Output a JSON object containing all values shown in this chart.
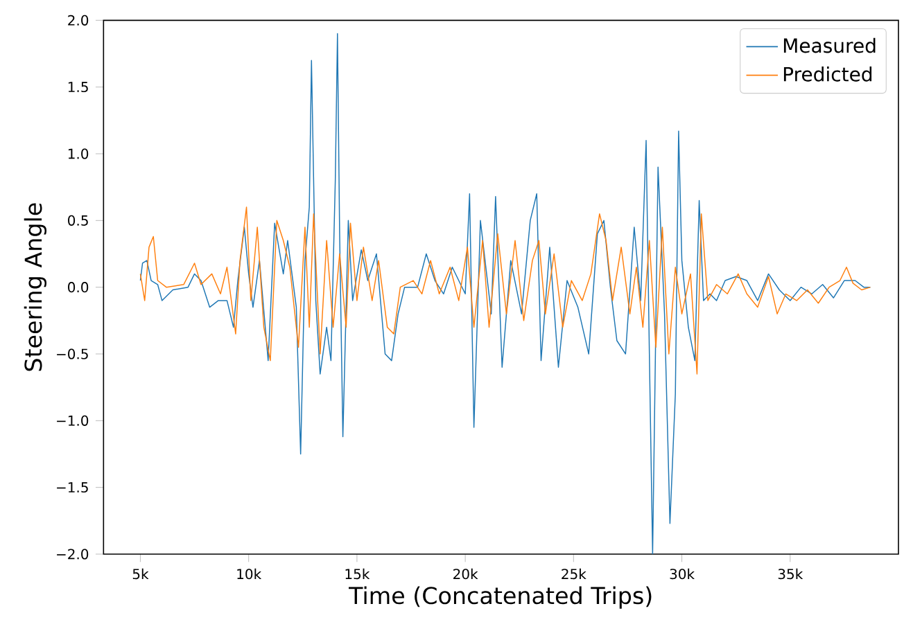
{
  "chart_data": {
    "type": "line",
    "xlabel": "Time (Concatenated Trips)",
    "ylabel": "Steering Angle",
    "xlim": [
      3300,
      40000
    ],
    "ylim": [
      -2.0,
      2.0
    ],
    "xticks": [
      {
        "value": 5000,
        "label": "5k"
      },
      {
        "value": 10000,
        "label": "10k"
      },
      {
        "value": 15000,
        "label": "15k"
      },
      {
        "value": 20000,
        "label": "20k"
      },
      {
        "value": 25000,
        "label": "25k"
      },
      {
        "value": 30000,
        "label": "30k"
      },
      {
        "value": 35000,
        "label": "35k"
      }
    ],
    "yticks": [
      {
        "value": -2.0,
        "label": "−2.0"
      },
      {
        "value": -1.5,
        "label": "−1.5"
      },
      {
        "value": -1.0,
        "label": "−1.0"
      },
      {
        "value": -0.5,
        "label": "−0.5"
      },
      {
        "value": 0,
        "label": "0.0"
      },
      {
        "value": 0.5,
        "label": "0.5"
      },
      {
        "value": 1.0,
        "label": "1.0"
      },
      {
        "value": 1.5,
        "label": "1.5"
      },
      {
        "value": 2.0,
        "label": "2.0"
      }
    ],
    "legend": "top right",
    "grid": false,
    "marker": "none",
    "line_style": "solid",
    "series": [
      {
        "name": "Measured",
        "color": "#1f77b4",
        "x": [
          5000,
          5100,
          5300,
          5500,
          5800,
          6000,
          6500,
          7200,
          7500,
          7800,
          8200,
          8600,
          9000,
          9300,
          9500,
          9800,
          10000,
          10200,
          10500,
          10900,
          11200,
          11600,
          11800,
          12200,
          12400,
          12600,
          12800,
          12900,
          13100,
          13300,
          13600,
          13800,
          14000,
          14100,
          14200,
          14350,
          14600,
          14800,
          15200,
          15500,
          15900,
          16300,
          16600,
          16900,
          17200,
          17800,
          18200,
          18600,
          19000,
          19400,
          20000,
          20200,
          20400,
          20700,
          21200,
          21400,
          21700,
          22100,
          22600,
          23000,
          23300,
          23500,
          23900,
          24300,
          24700,
          25200,
          25700,
          26100,
          26400,
          26700,
          27000,
          27400,
          27800,
          28100,
          28350,
          28500,
          28650,
          28900,
          29200,
          29450,
          29700,
          29850,
          30000,
          30300,
          30600,
          30800,
          31000,
          31300,
          31600,
          32000,
          32500,
          33000,
          33500,
          34000,
          34500,
          35000,
          35500,
          36000,
          36500,
          37000,
          37500,
          38000,
          38400,
          38700
        ],
        "values": [
          0.05,
          0.18,
          0.2,
          0.05,
          0.02,
          -0.1,
          -0.02,
          0,
          0.1,
          0.05,
          -0.15,
          -0.1,
          -0.1,
          -0.3,
          0.05,
          0.45,
          0.1,
          -0.15,
          0.2,
          -0.55,
          0.48,
          0.1,
          0.35,
          -0.15,
          -1.25,
          0.2,
          0.6,
          1.7,
          -0.1,
          -0.65,
          -0.3,
          -0.55,
          0.8,
          1.9,
          0.4,
          -1.12,
          0.5,
          -0.1,
          0.28,
          0.05,
          0.25,
          -0.5,
          -0.55,
          -0.2,
          0,
          0,
          0.25,
          0.05,
          -0.05,
          0.15,
          -0.05,
          0.7,
          -1.05,
          0.5,
          -0.2,
          0.68,
          -0.6,
          0.2,
          -0.2,
          0.5,
          0.7,
          -0.55,
          0.3,
          -0.6,
          0.05,
          -0.15,
          -0.5,
          0.4,
          0.5,
          0,
          -0.4,
          -0.5,
          0.45,
          -0.1,
          1.1,
          -0.5,
          -2.0,
          0.9,
          -0.2,
          -1.77,
          -0.8,
          1.17,
          0.2,
          -0.3,
          -0.55,
          0.65,
          -0.1,
          -0.05,
          -0.1,
          0.05,
          0.08,
          0.05,
          -0.1,
          0.1,
          -0.02,
          -0.1,
          0,
          -0.05,
          0.02,
          -0.08,
          0.05,
          0.05,
          0,
          0
        ]
      },
      {
        "name": "Predicted",
        "color": "#ff7f0e",
        "x": [
          5000,
          5200,
          5400,
          5600,
          5800,
          6200,
          7000,
          7500,
          7800,
          8300,
          8700,
          9000,
          9400,
          9600,
          9900,
          10100,
          10400,
          10700,
          11000,
          11300,
          11600,
          11900,
          12300,
          12600,
          12800,
          13000,
          13300,
          13600,
          13900,
          14200,
          14500,
          14700,
          15000,
          15300,
          15700,
          16000,
          16400,
          16700,
          17000,
          17600,
          18000,
          18400,
          18800,
          19300,
          19700,
          20100,
          20400,
          20800,
          21100,
          21500,
          21900,
          22300,
          22700,
          23100,
          23400,
          23700,
          24100,
          24500,
          24900,
          25400,
          25800,
          26200,
          26500,
          26800,
          27200,
          27600,
          27900,
          28200,
          28500,
          28800,
          29100,
          29400,
          29700,
          30000,
          30400,
          30700,
          30900,
          31200,
          31600,
          32100,
          32600,
          33000,
          33500,
          34000,
          34400,
          34800,
          35300,
          35800,
          36300,
          36800,
          37300,
          37600,
          37900,
          38300,
          38700
        ],
        "values": [
          0.1,
          -0.1,
          0.3,
          0.38,
          0.05,
          0,
          0.02,
          0.18,
          0.02,
          0.1,
          -0.05,
          0.15,
          -0.35,
          0.2,
          0.6,
          -0.1,
          0.45,
          -0.3,
          -0.55,
          0.5,
          0.35,
          0.15,
          -0.45,
          0.45,
          -0.3,
          0.55,
          -0.5,
          0.35,
          -0.3,
          0.25,
          -0.3,
          0.48,
          -0.1,
          0.3,
          -0.1,
          0.2,
          -0.3,
          -0.35,
          0,
          0.05,
          -0.05,
          0.2,
          -0.05,
          0.15,
          -0.1,
          0.3,
          -0.3,
          0.35,
          -0.3,
          0.4,
          -0.2,
          0.35,
          -0.25,
          0.2,
          0.35,
          -0.2,
          0.25,
          -0.3,
          0.05,
          -0.1,
          0.1,
          0.55,
          0.35,
          -0.1,
          0.3,
          -0.2,
          0.15,
          -0.3,
          0.35,
          -0.45,
          0.45,
          -0.5,
          0.15,
          -0.2,
          0.1,
          -0.65,
          0.55,
          -0.1,
          0.02,
          -0.05,
          0.1,
          -0.05,
          -0.15,
          0.08,
          -0.2,
          -0.05,
          -0.1,
          -0.02,
          -0.12,
          0,
          0.05,
          0.15,
          0.03,
          -0.02,
          0
        ]
      }
    ]
  }
}
